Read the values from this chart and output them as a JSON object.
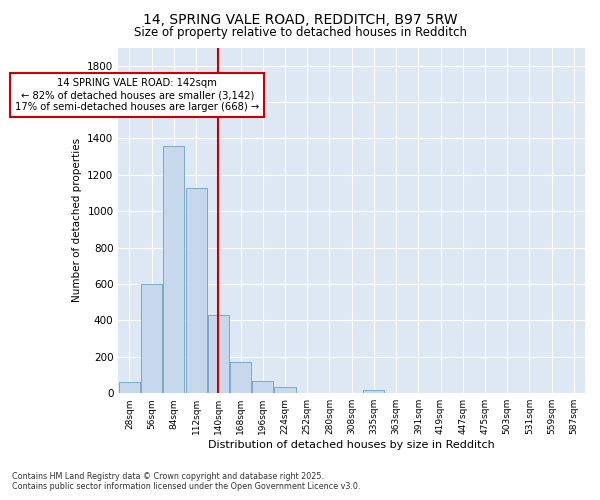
{
  "title_line1": "14, SPRING VALE ROAD, REDDITCH, B97 5RW",
  "title_line2": "Size of property relative to detached houses in Redditch",
  "xlabel": "Distribution of detached houses by size in Redditch",
  "ylabel": "Number of detached properties",
  "bar_color": "#c8d8ec",
  "bar_edge_color": "#7aaac8",
  "vline_color": "#cc0000",
  "vline_position": 4,
  "annotation_title": "14 SPRING VALE ROAD: 142sqm",
  "annotation_line1": "← 82% of detached houses are smaller (3,142)",
  "annotation_line2": "17% of semi-detached houses are larger (668) →",
  "annotation_box_edgecolor": "#cc0000",
  "annotation_bg": "#ffffff",
  "categories": [
    "28sqm",
    "56sqm",
    "84sqm",
    "112sqm",
    "140sqm",
    "168sqm",
    "196sqm",
    "224sqm",
    "252sqm",
    "280sqm",
    "308sqm",
    "335sqm",
    "363sqm",
    "391sqm",
    "419sqm",
    "447sqm",
    "475sqm",
    "503sqm",
    "531sqm",
    "559sqm",
    "587sqm"
  ],
  "values": [
    60,
    600,
    1360,
    1130,
    430,
    170,
    65,
    35,
    0,
    0,
    0,
    20,
    0,
    0,
    0,
    0,
    0,
    0,
    0,
    0,
    0
  ],
  "ylim": [
    0,
    1900
  ],
  "yticks": [
    0,
    200,
    400,
    600,
    800,
    1000,
    1200,
    1400,
    1600,
    1800
  ],
  "bg_color": "#dde8f4",
  "grid_color": "#ffffff",
  "footer_line1": "Contains HM Land Registry data © Crown copyright and database right 2025.",
  "footer_line2": "Contains public sector information licensed under the Open Government Licence v3.0."
}
